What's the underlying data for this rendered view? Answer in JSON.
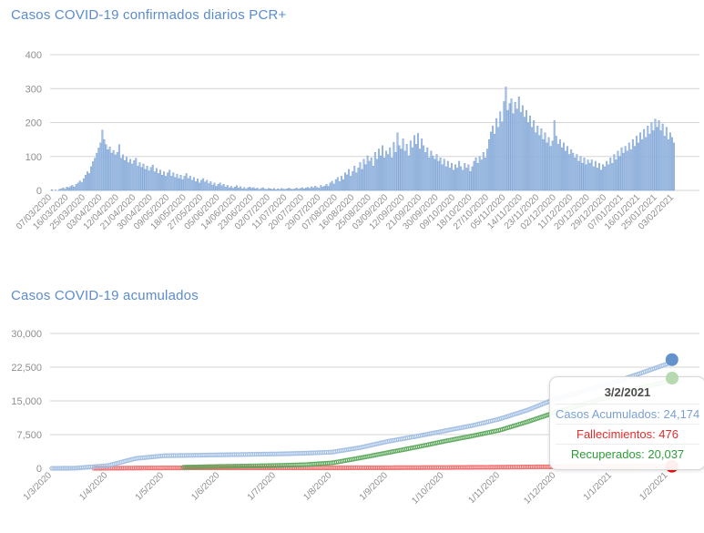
{
  "tooltip": {
    "date": "3/2/2021",
    "rows": [
      {
        "label": "Casos Acumulados",
        "value": "24,174",
        "text": "Casos Acumulados: 24,174",
        "color": "#7ba0d3"
      },
      {
        "label": "Fallecimientos",
        "value": "476",
        "text": "Fallecimientos: 476",
        "color": "#e52b2b"
      },
      {
        "label": "Recuperados",
        "value": "20,037",
        "text": "Recuperados: 20,037",
        "color": "#2f9e38"
      }
    ]
  },
  "colors": {
    "title": "#5b8bd0",
    "axis_label": "#8f8f8f",
    "grid": "#d6d6d6",
    "bar_fill": "#a5c1e5",
    "bar_stroke": "#7099cf",
    "cases_trail": "#9dbce2",
    "cases_dot": "#6392cc",
    "recovered_trail": "#56a556",
    "recovered_dot": "#b7d9b0",
    "deaths_trail": "#f26a6a",
    "deaths_dot": "#ec1212"
  },
  "chart_data": [
    {
      "type": "bar",
      "title": "Casos COVID-19 confirmados diarios PCR+",
      "xlabel": "",
      "ylabel": "",
      "ylim": [
        0,
        400
      ],
      "grid": true,
      "y_ticks": [
        0,
        100,
        200,
        300,
        400
      ],
      "y_tick_labels": [
        "0",
        "100",
        "200",
        "300",
        "400"
      ],
      "start_date": "07/03/2020",
      "end_date": "03/02/2021",
      "x_tick_every_days": 9,
      "x_tick_labels": [
        "07/03/2020",
        "16/03/2020",
        "25/03/2020",
        "03/04/2020",
        "12/04/2020",
        "21/04/2020",
        "30/04/2020",
        "09/05/2020",
        "18/05/2020",
        "27/05/2020",
        "05/06/2020",
        "14/06/2020",
        "23/06/2020",
        "02/07/2020",
        "11/07/2020",
        "20/07/2020",
        "29/07/2020",
        "07/08/2020",
        "16/08/2020",
        "25/08/2020",
        "03/09/2020",
        "12/09/2020",
        "21/09/2020",
        "30/09/2020",
        "09/10/2020",
        "18/10/2020",
        "27/10/2020",
        "05/11/2020",
        "14/11/2020",
        "23/11/2020",
        "02/12/2020",
        "11/12/2020",
        "20/12/2020",
        "29/12/2020",
        "07/01/2021",
        "16/01/2021",
        "25/01/2021",
        "03/02/2021"
      ],
      "values": [
        2,
        0,
        1,
        0,
        3,
        5,
        8,
        4,
        10,
        8,
        12,
        15,
        10,
        18,
        22,
        28,
        24,
        35,
        45,
        55,
        50,
        70,
        85,
        95,
        110,
        125,
        140,
        178,
        150,
        135,
        120,
        128,
        110,
        118,
        105,
        112,
        135,
        95,
        105,
        88,
        98,
        82,
        92,
        78,
        88,
        95,
        72,
        82,
        68,
        78,
        62,
        72,
        58,
        68,
        75,
        55,
        65,
        50,
        60,
        45,
        55,
        42,
        52,
        60,
        42,
        52,
        38,
        48,
        35,
        45,
        32,
        42,
        50,
        35,
        42,
        30,
        38,
        26,
        34,
        22,
        30,
        35,
        25,
        30,
        20,
        26,
        16,
        22,
        12,
        18,
        22,
        14,
        18,
        10,
        15,
        8,
        12,
        6,
        10,
        14,
        7,
        11,
        5,
        9,
        4,
        8,
        10,
        6,
        9,
        5,
        7,
        3,
        6,
        8,
        4,
        3,
        6,
        5,
        3,
        6,
        2,
        5,
        3,
        6,
        4,
        3,
        5,
        7,
        4,
        3,
        5,
        7,
        4,
        6,
        8,
        5,
        7,
        9,
        6,
        11,
        8,
        13,
        9,
        7,
        15,
        10,
        13,
        18,
        12,
        22,
        27,
        19,
        32,
        38,
        26,
        42,
        32,
        52,
        46,
        62,
        42,
        56,
        72,
        52,
        66,
        82,
        62,
        92,
        76,
        102,
        86,
        96,
        72,
        112,
        92,
        122,
        102,
        132,
        96,
        116,
        106,
        126,
        96,
        142,
        112,
        170,
        132,
        122,
        152,
        116,
        136,
        102,
        146,
        126,
        162,
        136,
        168,
        122,
        152,
        132,
        112,
        126,
        96,
        116,
        102,
        92,
        106,
        86,
        96,
        76,
        92,
        70,
        86,
        66,
        80,
        60,
        76,
        66,
        86,
        70,
        60,
        80,
        66,
        76,
        56,
        70,
        86,
        96,
        80,
        100,
        90,
        112,
        96,
        122,
        150,
        172,
        190,
        166,
        212,
        186,
        232,
        202,
        262,
        305,
        236,
        256,
        270,
        226,
        260,
        240,
        276,
        230,
        250,
        216,
        236,
        200,
        220,
        186,
        206,
        170,
        190,
        162,
        182,
        150,
        170,
        140,
        156,
        130,
        146,
        206,
        160,
        136,
        150,
        126,
        140,
        116,
        130,
        106,
        120,
        110,
        96,
        106,
        86,
        100,
        80,
        96,
        76,
        90,
        80,
        90,
        70,
        86,
        66,
        80,
        60,
        76,
        70,
        86,
        76,
        96,
        80,
        106,
        90,
        116,
        100,
        126,
        110,
        130,
        116,
        140,
        120,
        150,
        130,
        160,
        140,
        170,
        150,
        180,
        156,
        190,
        166,
        200,
        176,
        210,
        186,
        206,
        176,
        196,
        160,
        186,
        150,
        170,
        156,
        140
      ]
    },
    {
      "type": "line",
      "title": "Casos COVID-19 acumulados",
      "xlabel": "",
      "ylabel": "",
      "ylim": [
        0,
        30000
      ],
      "grid": true,
      "y_ticks": [
        0,
        7500,
        15000,
        22500,
        30000
      ],
      "y_tick_labels": [
        "0",
        "7,500",
        "15,000",
        "22,500",
        "30,000"
      ],
      "x_tick_labels": [
        "1/3/2020",
        "1/4/2020",
        "1/5/2020",
        "1/6/2020",
        "1/7/2020",
        "1/8/2020",
        "1/9/2020",
        "1/10/2020",
        "1/11/2020",
        "1/12/2020",
        "1/1/2021",
        "1/2/2021"
      ],
      "x_unit": "months_since_1/3/2020",
      "legend": "none",
      "series": [
        {
          "name": "Casos Acumulados",
          "final_value": 24174,
          "final_date": "3/2/2021",
          "points": [
            [
              0,
              0
            ],
            [
              0.4,
              20
            ],
            [
              1,
              600
            ],
            [
              1.5,
              2200
            ],
            [
              2,
              2800
            ],
            [
              3,
              3000
            ],
            [
              4,
              3200
            ],
            [
              4.5,
              3350
            ],
            [
              5,
              3600
            ],
            [
              5.5,
              4600
            ],
            [
              6,
              6000
            ],
            [
              6.5,
              7100
            ],
            [
              7,
              8300
            ],
            [
              7.5,
              9500
            ],
            [
              8,
              11000
            ],
            [
              8.5,
              13000
            ],
            [
              9,
              15500
            ],
            [
              9.5,
              17200
            ],
            [
              10,
              19000
            ],
            [
              10.5,
              21100
            ],
            [
              11,
              23300
            ],
            [
              11.07,
              24174
            ]
          ]
        },
        {
          "name": "Recuperados",
          "final_value": 20037,
          "final_date": "3/2/2021",
          "points": [
            [
              2.35,
              250
            ],
            [
              3,
              420
            ],
            [
              4,
              620
            ],
            [
              4.5,
              800
            ],
            [
              5,
              1200
            ],
            [
              5.5,
              2300
            ],
            [
              6,
              3500
            ],
            [
              6.5,
              4700
            ],
            [
              7,
              6000
            ],
            [
              7.5,
              7200
            ],
            [
              8,
              8500
            ],
            [
              8.5,
              10400
            ],
            [
              9,
              12500
            ],
            [
              9.5,
              14300
            ],
            [
              10,
              16100
            ],
            [
              10.5,
              17900
            ],
            [
              11,
              19300
            ],
            [
              11.07,
              20037
            ]
          ]
        },
        {
          "name": "Fallecimientos",
          "final_value": 476,
          "final_date": "3/2/2021",
          "points": [
            [
              0.75,
              5
            ],
            [
              1,
              20
            ],
            [
              1.5,
              60
            ],
            [
              2,
              90
            ],
            [
              3,
              100
            ],
            [
              5,
              108
            ],
            [
              6,
              130
            ],
            [
              7,
              180
            ],
            [
              8,
              250
            ],
            [
              9,
              350
            ],
            [
              10,
              420
            ],
            [
              11,
              470
            ],
            [
              11.07,
              476
            ]
          ]
        }
      ]
    }
  ]
}
